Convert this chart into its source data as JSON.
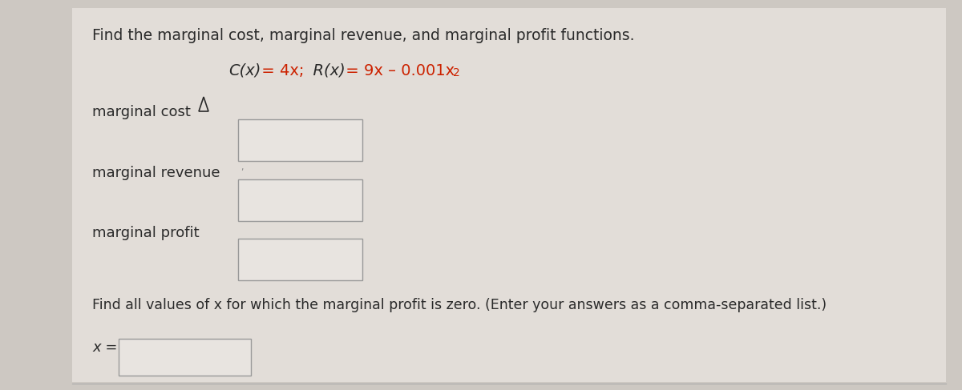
{
  "background_color": "#cdc8c2",
  "panel_color": "#e2ddd8",
  "title_text": "Find the marginal cost, marginal revenue, and marginal profit functions.",
  "formula_cx": "C(x)",
  "formula_eq1": " = 4x;",
  "formula_rx": "  R(x)",
  "formula_eq2": " = 9x – 0.001x",
  "formula_sup": "2",
  "formula_color_dark": "#2a2a2a",
  "formula_color_red": "#cc2200",
  "labels": [
    "marginal cost",
    "marginal revenue",
    "marginal profit"
  ],
  "bottom_question": "Find all values of x for which the marginal profit is zero. (Enter your answers as a comma-separated list.)",
  "x_label": "x =",
  "box_fill": "#e8e4e0",
  "box_edge": "#999999",
  "text_color": "#2a2a2a",
  "font_size_title": 13.5,
  "font_size_formula": 14,
  "font_size_labels": 13,
  "font_size_bottom": 12.5,
  "cursor_color": "#2a2a2a",
  "fig_width": 12.0,
  "fig_height": 4.87,
  "dpi": 100
}
